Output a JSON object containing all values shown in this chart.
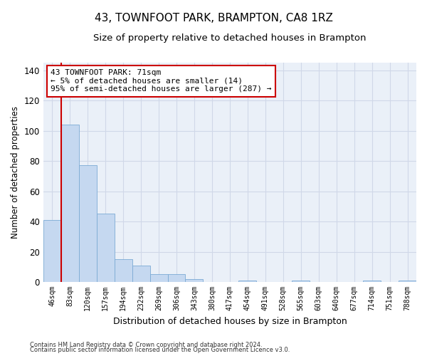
{
  "title": "43, TOWNFOOT PARK, BRAMPTON, CA8 1RZ",
  "subtitle": "Size of property relative to detached houses in Brampton",
  "xlabel": "Distribution of detached houses by size in Brampton",
  "ylabel": "Number of detached properties",
  "bar_labels": [
    "46sqm",
    "83sqm",
    "120sqm",
    "157sqm",
    "194sqm",
    "232sqm",
    "269sqm",
    "306sqm",
    "343sqm",
    "380sqm",
    "417sqm",
    "454sqm",
    "491sqm",
    "528sqm",
    "565sqm",
    "603sqm",
    "640sqm",
    "677sqm",
    "714sqm",
    "751sqm",
    "788sqm"
  ],
  "bar_values": [
    41,
    104,
    77,
    45,
    15,
    11,
    5,
    5,
    2,
    0,
    0,
    1,
    0,
    0,
    1,
    0,
    0,
    0,
    1,
    0,
    1
  ],
  "bar_color": "#c5d8f0",
  "bar_edge_color": "#7baad4",
  "annotation_text": "43 TOWNFOOT PARK: 71sqm\n← 5% of detached houses are smaller (14)\n95% of semi-detached houses are larger (287) →",
  "annotation_box_color": "#ffffff",
  "annotation_box_edge_color": "#cc0000",
  "vline_color": "#cc0000",
  "ylim": [
    0,
    145
  ],
  "yticks": [
    0,
    20,
    40,
    60,
    80,
    100,
    120,
    140
  ],
  "grid_color": "#d0d8e8",
  "bg_color": "#eaf0f8",
  "footer1": "Contains HM Land Registry data © Crown copyright and database right 2024.",
  "footer2": "Contains public sector information licensed under the Open Government Licence v3.0.",
  "title_fontsize": 11,
  "subtitle_fontsize": 9.5,
  "tick_fontsize": 7,
  "ylabel_fontsize": 8.5,
  "xlabel_fontsize": 9,
  "footer_fontsize": 6,
  "annotation_fontsize": 8,
  "vline_x": 0.5
}
